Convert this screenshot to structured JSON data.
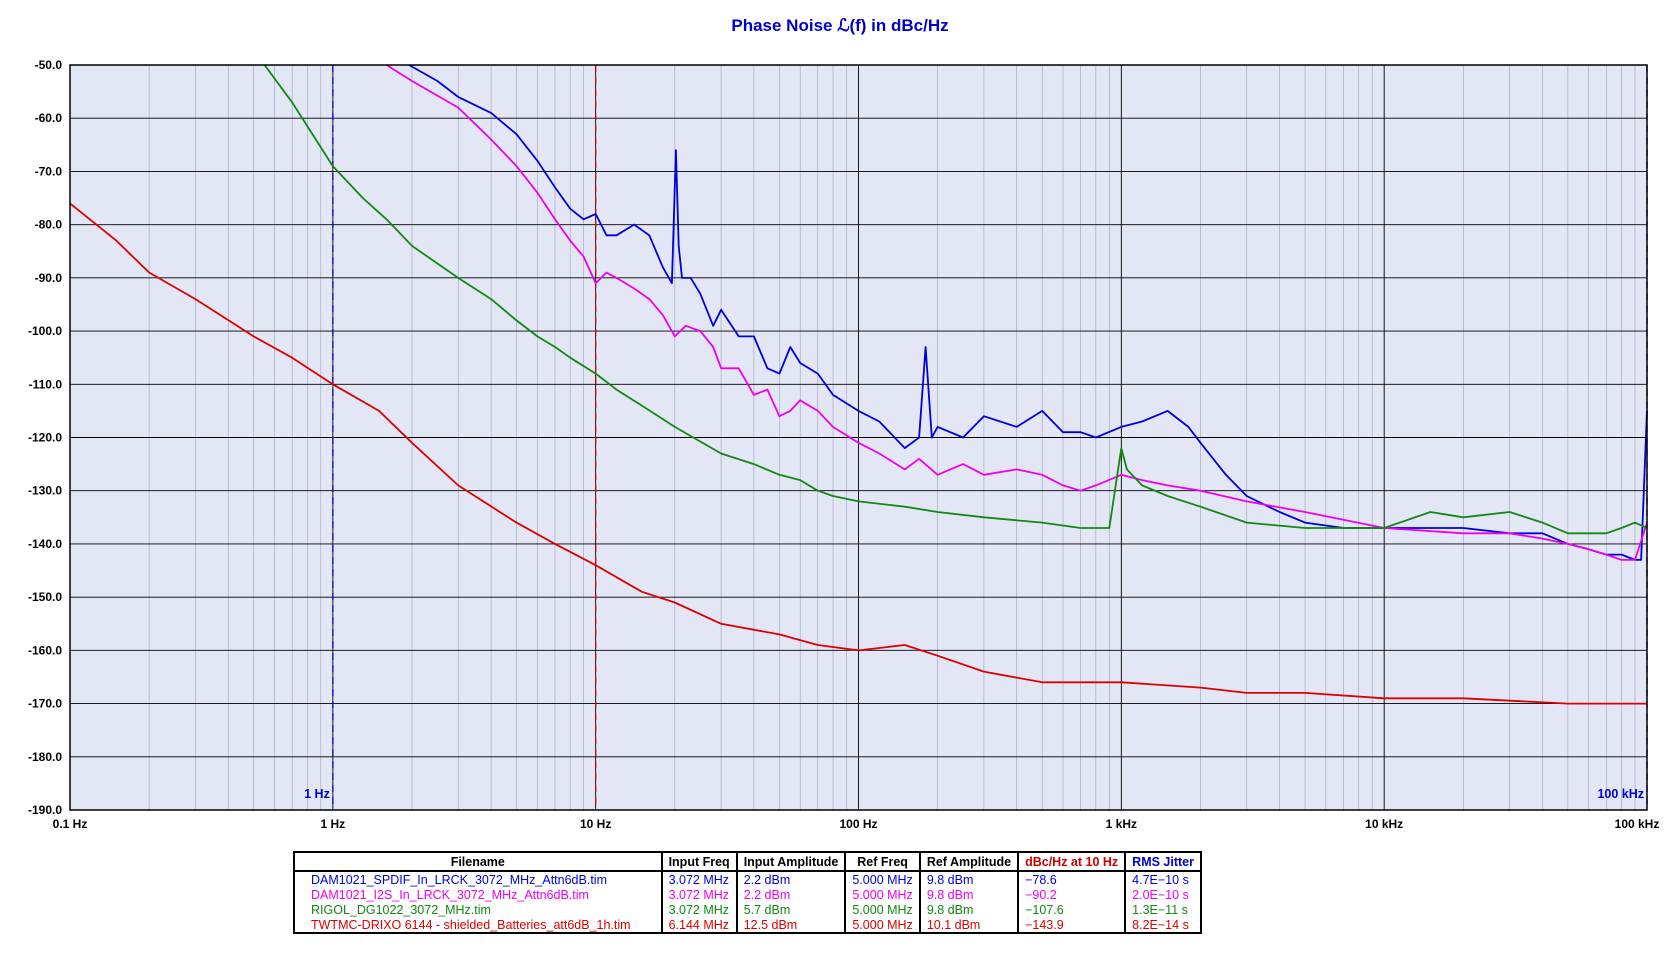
{
  "chart_data": {
    "type": "line",
    "title": "Phase Noise ℒ(f) in dBc/Hz",
    "x_scale": "log",
    "xlim": [
      0.1,
      100000
    ],
    "ylim": [
      -190,
      -50
    ],
    "x_ticks": [
      0.1,
      1,
      10,
      100,
      1000,
      10000,
      100000
    ],
    "x_tick_labels": [
      "0.1 Hz",
      "1 Hz",
      "10 Hz",
      "100 Hz",
      "1 kHz",
      "10 kHz",
      "100 kHz"
    ],
    "y_ticks": [
      -50,
      -60,
      -70,
      -80,
      -90,
      -100,
      -110,
      -120,
      -130,
      -140,
      -150,
      -160,
      -170,
      -180,
      -190
    ],
    "y_tick_labels": [
      "-50.0",
      "-60.0",
      "-70.0",
      "-80.0",
      "-90.0",
      "-100.0",
      "-110.0",
      "-120.0",
      "-130.0",
      "-140.0",
      "-150.0",
      "-160.0",
      "-170.0",
      "-180.0",
      "-190.0"
    ],
    "grid": true,
    "markers": [
      {
        "x": 1,
        "label": "1 Hz",
        "color": "#0000cc",
        "style": "dashed"
      },
      {
        "x": 10,
        "label": "",
        "color": "#cc0000",
        "style": "dashed"
      },
      {
        "x": 100000,
        "label": "100 kHz",
        "color": "#0000cc",
        "style": "dashed"
      }
    ],
    "series": [
      {
        "color": "#0000dd",
        "x": [
          1.95,
          2.5,
          3,
          4,
          5,
          6,
          7,
          8,
          9,
          10,
          11,
          12,
          14,
          16,
          18,
          19.5,
          20.2,
          20.7,
          21.3,
          23,
          25,
          28,
          30,
          35,
          40,
          45,
          50,
          55,
          60,
          70,
          80,
          100,
          120,
          150,
          170,
          180,
          190,
          200,
          250,
          300,
          400,
          500,
          600,
          700,
          800,
          1000,
          1200,
          1500,
          1800,
          2000,
          2500,
          3000,
          4000,
          5000,
          7000,
          10000,
          15000,
          20000,
          30000,
          40000,
          50000,
          60000,
          70000,
          80000,
          90000,
          95000,
          100000
        ],
        "y": [
          -50,
          -53,
          -56,
          -59,
          -63,
          -68,
          -73,
          -77,
          -79,
          -78,
          -82,
          -82,
          -80,
          -82,
          -88,
          -91,
          -66,
          -84,
          -90,
          -90,
          -93,
          -99,
          -96,
          -101,
          -101,
          -107,
          -108,
          -103,
          -106,
          -108,
          -112,
          -115,
          -117,
          -122,
          -120,
          -103,
          -120,
          -118,
          -120,
          -116,
          -118,
          -115,
          -119,
          -119,
          -120,
          -118,
          -117,
          -115,
          -118,
          -121,
          -127,
          -131,
          -134,
          -136,
          -137,
          -137,
          -137,
          -137,
          -138,
          -138,
          -140,
          -141,
          -142,
          -142,
          -143,
          -143,
          -115
        ]
      },
      {
        "color": "#ee00ee",
        "x": [
          1.6,
          2,
          3,
          4,
          5,
          6,
          7,
          8,
          9,
          10,
          11,
          12,
          14,
          16,
          18,
          20,
          22,
          25,
          28,
          30,
          35,
          40,
          45,
          50,
          55,
          60,
          70,
          80,
          100,
          120,
          150,
          170,
          200,
          250,
          300,
          400,
          500,
          600,
          700,
          800,
          1000,
          1200,
          1500,
          2000,
          3000,
          5000,
          10000,
          20000,
          30000,
          40000,
          50000,
          60000,
          70000,
          80000,
          90000,
          100000
        ],
        "y": [
          -50,
          -53,
          -58,
          -64,
          -69,
          -74,
          -79,
          -83,
          -86,
          -91,
          -89,
          -90,
          -92,
          -94,
          -97,
          -101,
          -99,
          -100,
          -103,
          -107,
          -107,
          -112,
          -111,
          -116,
          -115,
          -113,
          -115,
          -118,
          -121,
          -123,
          -126,
          -124,
          -127,
          -125,
          -127,
          -126,
          -127,
          -129,
          -130,
          -129,
          -127,
          -128,
          -129,
          -130,
          -132,
          -134,
          -137,
          -138,
          -138,
          -139,
          -140,
          -141,
          -142,
          -143,
          -143,
          -136
        ]
      },
      {
        "color": "#118811",
        "x": [
          0.55,
          0.7,
          1,
          1.3,
          1.6,
          2,
          3,
          4,
          5,
          6,
          7,
          8,
          10,
          12,
          15,
          20,
          30,
          40,
          50,
          60,
          70,
          80,
          100,
          150,
          200,
          300,
          500,
          700,
          900,
          1000,
          1050,
          1200,
          1500,
          2000,
          3000,
          5000,
          7000,
          10000,
          15000,
          20000,
          30000,
          40000,
          50000,
          60000,
          70000,
          80000,
          90000,
          100000
        ],
        "y": [
          -50,
          -57,
          -69,
          -75,
          -79,
          -84,
          -90,
          -94,
          -98,
          -101,
          -103,
          -105,
          -108,
          -111,
          -114,
          -118,
          -123,
          -125,
          -127,
          -128,
          -130,
          -131,
          -132,
          -133,
          -134,
          -135,
          -136,
          -137,
          -137,
          -122,
          -126,
          -129,
          -131,
          -133,
          -136,
          -137,
          -137,
          -137,
          -134,
          -135,
          -134,
          -136,
          -138,
          -138,
          -138,
          -137,
          -136,
          -137
        ]
      },
      {
        "color": "#dd0000",
        "x": [
          0.1,
          0.15,
          0.2,
          0.3,
          0.5,
          0.7,
          1,
          1.5,
          2,
          3,
          5,
          7,
          10,
          15,
          20,
          30,
          50,
          70,
          100,
          150,
          200,
          300,
          500,
          700,
          1000,
          2000,
          3000,
          5000,
          10000,
          20000,
          50000,
          100000
        ],
        "y": [
          -76,
          -83,
          -89,
          -94,
          -101,
          -105,
          -110,
          -115,
          -121,
          -129,
          -136,
          -140,
          -144,
          -149,
          -151,
          -155,
          -157,
          -159,
          -160,
          -159,
          -161,
          -164,
          -166,
          -166,
          -166,
          -167,
          -168,
          -168,
          -169,
          -169,
          -170,
          -170
        ]
      }
    ]
  },
  "table": {
    "headers": [
      "Filename",
      "Input Freq",
      "Input Amplitude",
      "Ref Freq",
      "Ref Amplitude",
      "dBc/Hz at 10 Hz",
      "RMS Jitter"
    ],
    "header_colors": [
      "#000000",
      "#000000",
      "#000000",
      "#000000",
      "#000000",
      "#cc0000",
      "#0000cc"
    ],
    "rows": [
      {
        "color": "#0000dd",
        "cells": [
          "DAM1021_SPDIF_In_LRCK_3072_MHz_Attn6dB.tim",
          "3.072 MHz",
          "2.2 dBm",
          "5.000 MHz",
          "9.8 dBm",
          "−78.6",
          "4.7E−10 s"
        ]
      },
      {
        "color": "#ee00ee",
        "cells": [
          "DAM1021_I2S_In_LRCK_3072_MHz_Attn6dB.tim",
          "3.072 MHz",
          "2.2 dBm",
          "5.000 MHz",
          "9.8 dBm",
          "−90.2",
          "2.0E−10 s"
        ]
      },
      {
        "color": "#118811",
        "cells": [
          "RIGOL_DG1022_3072_MHz.tim",
          "3.072 MHz",
          "5.7 dBm",
          "5.000 MHz",
          "9.8 dBm",
          "−107.6",
          "1.3E−11 s"
        ]
      },
      {
        "color": "#dd0000",
        "cells": [
          "TWTMC-DRIXO 6144 - shielded_Batteries_att6dB_1h.tim",
          "6.144 MHz",
          "12.5 dBm",
          "5.000 MHz",
          "10.1 dBm",
          "−143.9",
          "8.2E−14 s"
        ]
      }
    ]
  }
}
